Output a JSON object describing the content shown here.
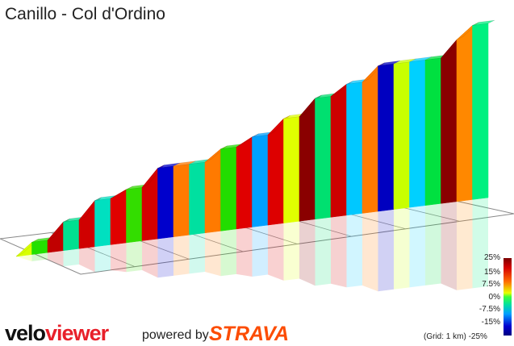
{
  "title": "Canillo - Col d'Ordino",
  "legend": {
    "ticks": [
      "25%",
      "15%",
      "7.5%",
      "0%",
      "-7.5%",
      "-15%",
      "-25%"
    ],
    "grid_note": "(Grid: 1 km)"
  },
  "branding": {
    "logo_velo": "velo",
    "logo_viewer": "viewer",
    "powered_by": "powered by",
    "strava": "STRAVA"
  },
  "colors": {
    "brand_red": "#e8202a",
    "strava_orange": "#fc4c02"
  },
  "chart_data": {
    "type": "area",
    "title": "Canillo - Col d'Ordino",
    "xlabel": "",
    "ylabel": "",
    "gradient_scale": [
      "25%",
      "15%",
      "7.5%",
      "0%",
      "-7.5%",
      "-15%",
      "-25%"
    ],
    "segments": [
      {
        "color": "#d8ff00",
        "height": 0.0,
        "next": 0.12
      },
      {
        "color": "#22e000",
        "height": 0.12,
        "next": 0.12
      },
      {
        "color": "#c00000",
        "height": 0.12,
        "next": 0.28
      },
      {
        "color": "#00e090",
        "height": 0.28,
        "next": 0.28
      },
      {
        "color": "#d00000",
        "height": 0.28,
        "next": 0.45
      },
      {
        "color": "#00e0c0",
        "height": 0.45,
        "next": 0.45
      },
      {
        "color": "#e00000",
        "height": 0.45,
        "next": 0.52
      },
      {
        "color": "#33dd00",
        "height": 0.52,
        "next": 0.52
      },
      {
        "color": "#d40000",
        "height": 0.52,
        "next": 0.69
      },
      {
        "color": "#0000cc",
        "height": 0.69,
        "next": 0.69
      },
      {
        "color": "#ff7a00",
        "height": 0.69,
        "next": 0.69
      },
      {
        "color": "#00e0a0",
        "height": 0.69,
        "next": 0.69
      },
      {
        "color": "#ff7a00",
        "height": 0.69,
        "next": 0.8
      },
      {
        "color": "#22dd00",
        "height": 0.8,
        "next": 0.8
      },
      {
        "color": "#e00000",
        "height": 0.8,
        "next": 0.88
      },
      {
        "color": "#00a0ff",
        "height": 0.88,
        "next": 0.88
      },
      {
        "color": "#dd0000",
        "height": 0.88,
        "next": 1.02
      },
      {
        "color": "#e0ff00",
        "height": 1.02,
        "next": 1.02
      },
      {
        "color": "#8a0000",
        "height": 1.02,
        "next": 1.18
      },
      {
        "color": "#00e070",
        "height": 1.18,
        "next": 1.18
      },
      {
        "color": "#cc0000",
        "height": 1.18,
        "next": 1.28
      },
      {
        "color": "#00c8ff",
        "height": 1.28,
        "next": 1.28
      },
      {
        "color": "#ff7a00",
        "height": 1.28,
        "next": 1.42
      },
      {
        "color": "#0000c0",
        "height": 1.42,
        "next": 1.42
      },
      {
        "color": "#c8ff00",
        "height": 1.42,
        "next": 1.42
      },
      {
        "color": "#00d0ff",
        "height": 1.42,
        "next": 1.42
      },
      {
        "color": "#00e040",
        "height": 1.42,
        "next": 1.42
      },
      {
        "color": "#8a0000",
        "height": 1.42,
        "next": 1.58
      },
      {
        "color": "#ff8800",
        "height": 1.58,
        "next": 1.7
      },
      {
        "color": "#00f080",
        "height": 1.7,
        "next": 1.7
      }
    ]
  }
}
